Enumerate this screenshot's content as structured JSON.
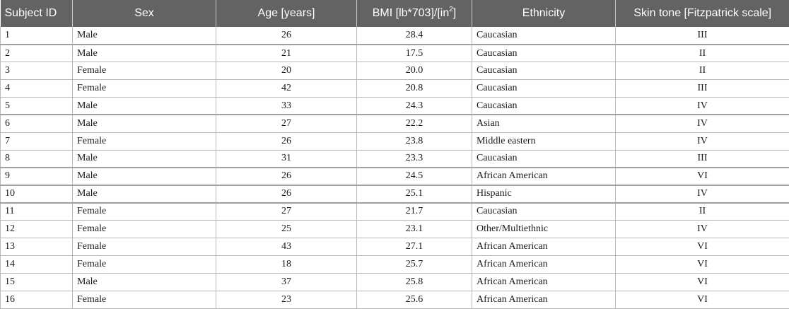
{
  "table": {
    "headers": {
      "subject_id": "Subject ID",
      "sex": "Sex",
      "age": "Age [years]",
      "bmi_prefix": "BMI [lb*703]/[in",
      "bmi_sup": "2",
      "bmi_suffix": "]",
      "ethnicity": "Ethnicity",
      "skin_tone": "Skin tone [Fitzpatrick scale]"
    },
    "rows": [
      {
        "id": "1",
        "sex": "Male",
        "age": "26",
        "bmi": "28.4",
        "ethnicity": "Caucasian",
        "skin": "III"
      },
      {
        "id": "2",
        "sex": "Male",
        "age": "21",
        "bmi": "17.5",
        "ethnicity": "Caucasian",
        "skin": "II"
      },
      {
        "id": "3",
        "sex": "Female",
        "age": "20",
        "bmi": "20.0",
        "ethnicity": "Caucasian",
        "skin": "II"
      },
      {
        "id": "4",
        "sex": "Female",
        "age": "42",
        "bmi": "20.8",
        "ethnicity": "Caucasian",
        "skin": "III"
      },
      {
        "id": "5",
        "sex": "Male",
        "age": "33",
        "bmi": "24.3",
        "ethnicity": "Caucasian",
        "skin": "IV"
      },
      {
        "id": "6",
        "sex": "Male",
        "age": "27",
        "bmi": "22.2",
        "ethnicity": "Asian",
        "skin": "IV"
      },
      {
        "id": "7",
        "sex": "Female",
        "age": "26",
        "bmi": "23.8",
        "ethnicity": "Middle eastern",
        "skin": "IV"
      },
      {
        "id": "8",
        "sex": "Male",
        "age": "31",
        "bmi": "23.3",
        "ethnicity": "Caucasian",
        "skin": "III"
      },
      {
        "id": "9",
        "sex": "Male",
        "age": "26",
        "bmi": "24.5",
        "ethnicity": "African American",
        "skin": "VI"
      },
      {
        "id": "10",
        "sex": "Male",
        "age": "26",
        "bmi": "25.1",
        "ethnicity": "Hispanic",
        "skin": "IV"
      },
      {
        "id": "11",
        "sex": "Female",
        "age": "27",
        "bmi": "21.7",
        "ethnicity": "Caucasian",
        "skin": "II"
      },
      {
        "id": "12",
        "sex": "Female",
        "age": "25",
        "bmi": "23.1",
        "ethnicity": "Other/Multiethnic",
        "skin": "IV"
      },
      {
        "id": "13",
        "sex": "Female",
        "age": "43",
        "bmi": "27.1",
        "ethnicity": "African American",
        "skin": "VI"
      },
      {
        "id": "14",
        "sex": "Female",
        "age": "18",
        "bmi": "25.7",
        "ethnicity": "African American",
        "skin": "VI"
      },
      {
        "id": "15",
        "sex": "Male",
        "age": "37",
        "bmi": "25.8",
        "ethnicity": "African American",
        "skin": "VI"
      },
      {
        "id": "16",
        "sex": "Female",
        "age": "23",
        "bmi": "25.6",
        "ethnicity": "African American",
        "skin": "VI"
      }
    ]
  }
}
